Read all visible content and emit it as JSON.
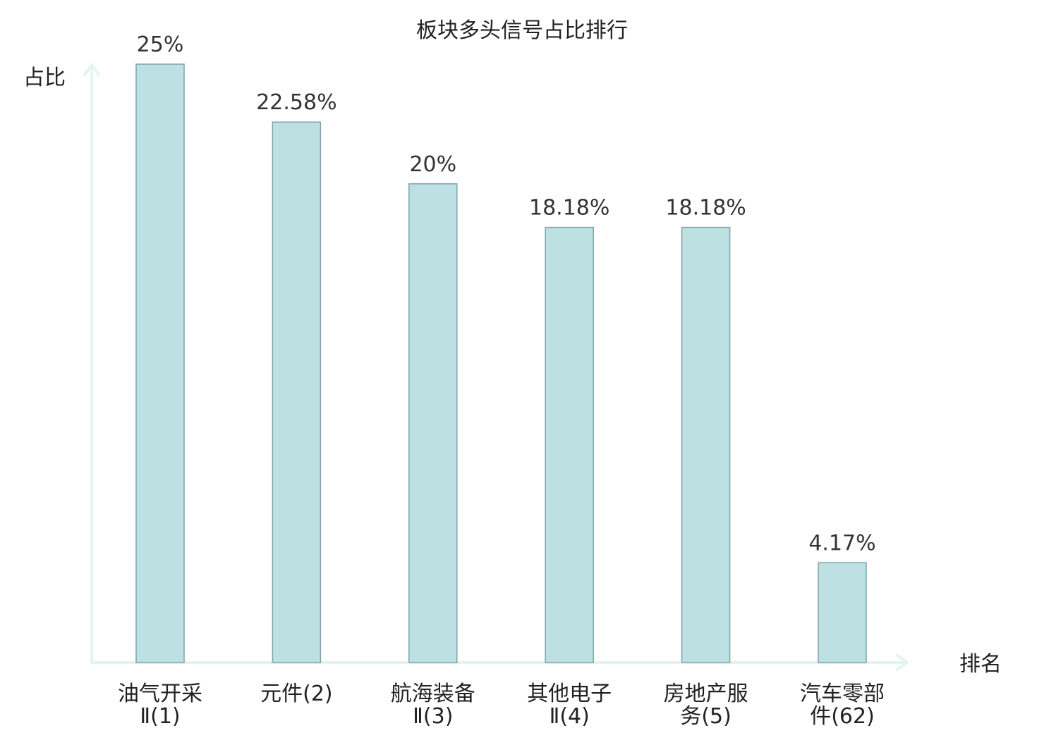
{
  "chart_data": {
    "type": "bar",
    "title": "板块多头信号占比排行",
    "ylabel": "占比",
    "xlabel": "排名",
    "ylim": [
      0,
      25
    ],
    "grid": false,
    "categories": [
      [
        "油气开采",
        "Ⅱ(1)"
      ],
      [
        "元件(2)"
      ],
      [
        "航海装备",
        "Ⅱ(3)"
      ],
      [
        "其他电子",
        "Ⅱ(4)"
      ],
      [
        "房地产服",
        "务(5)"
      ],
      [
        "汽车零部",
        "件(62)"
      ]
    ],
    "values": [
      25,
      22.58,
      20,
      18.18,
      18.18,
      4.17
    ],
    "value_labels": [
      "25%",
      "22.58%",
      "20%",
      "18.18%",
      "18.18%",
      "4.17%"
    ],
    "highlight_index": 5,
    "colors": {
      "bar_fill": "#bde0e3",
      "bar_stroke": "#7fa3a7",
      "axis": "#e3f4f1",
      "text": "#222222",
      "highlight_text": "#e41a1c"
    }
  }
}
